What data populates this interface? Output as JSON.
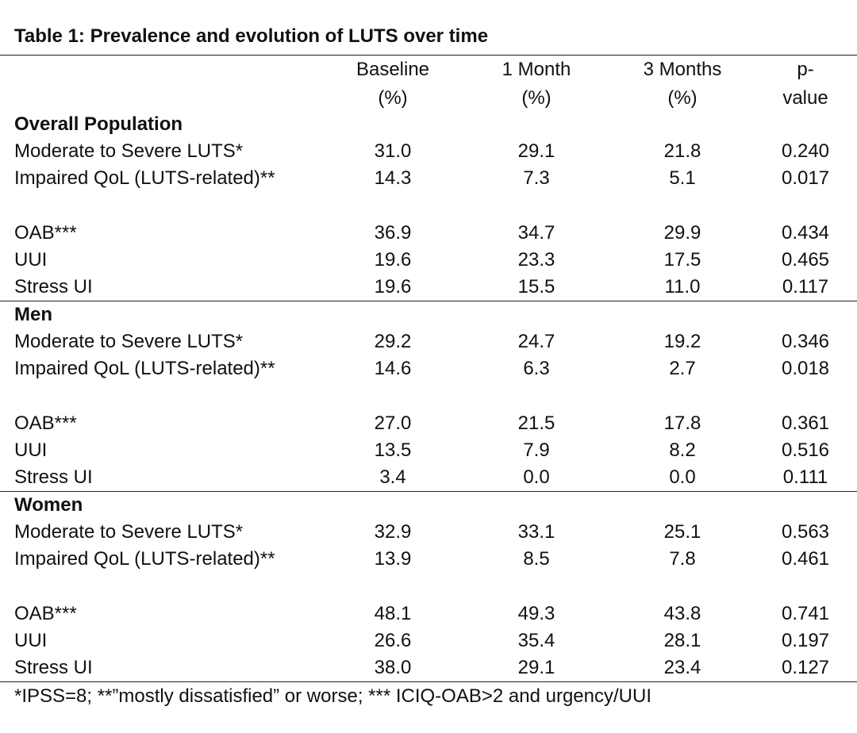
{
  "title": "Table 1: Prevalence and evolution of LUTS over time",
  "columns": [
    {
      "line1": "Baseline",
      "line2": "(%)"
    },
    {
      "line1": "1 Month",
      "line2": "(%)"
    },
    {
      "line1": "3 Months",
      "line2": "(%)"
    },
    {
      "line1": "p-",
      "line2": "value"
    }
  ],
  "sections": [
    {
      "name": "Overall Population",
      "rows": [
        {
          "label": "Moderate to Severe LUTS*",
          "values": [
            "31.0",
            "29.1",
            "21.8",
            "0.240"
          ]
        },
        {
          "label": "Impaired QoL (LUTS-related)**",
          "values": [
            "14.3",
            "7.3",
            "5.1",
            "0.017"
          ]
        },
        {
          "label": "OAB***",
          "values": [
            "36.9",
            "34.7",
            "29.9",
            "0.434"
          ]
        },
        {
          "label": "UUI",
          "values": [
            "19.6",
            "23.3",
            "17.5",
            "0.465"
          ]
        },
        {
          "label": "Stress UI",
          "values": [
            "19.6",
            "15.5",
            "11.0",
            "0.117"
          ]
        }
      ]
    },
    {
      "name": "Men",
      "rows": [
        {
          "label": "Moderate to Severe LUTS*",
          "values": [
            "29.2",
            "24.7",
            "19.2",
            "0.346"
          ]
        },
        {
          "label": "Impaired QoL (LUTS-related)**",
          "values": [
            "14.6",
            "6.3",
            "2.7",
            "0.018"
          ]
        },
        {
          "label": "OAB***",
          "values": [
            "27.0",
            "21.5",
            "17.8",
            "0.361"
          ]
        },
        {
          "label": "UUI",
          "values": [
            "13.5",
            "7.9",
            "8.2",
            "0.516"
          ]
        },
        {
          "label": "Stress UI",
          "values": [
            "3.4",
            "0.0",
            "0.0",
            "0.111"
          ]
        }
      ]
    },
    {
      "name": "Women",
      "rows": [
        {
          "label": "Moderate to Severe LUTS*",
          "values": [
            "32.9",
            "33.1",
            "25.1",
            "0.563"
          ]
        },
        {
          "label": "Impaired QoL (LUTS-related)**",
          "values": [
            "13.9",
            "8.5",
            "7.8",
            "0.461"
          ]
        },
        {
          "label": "OAB***",
          "values": [
            "48.1",
            "49.3",
            "43.8",
            "0.741"
          ]
        },
        {
          "label": "UUI",
          "values": [
            "26.6",
            "35.4",
            "28.1",
            "0.197"
          ]
        },
        {
          "label": "Stress UI",
          "values": [
            "38.0",
            "29.1",
            "23.4",
            "0.127"
          ]
        }
      ]
    }
  ],
  "footnote": "*IPSS=8; **”mostly dissatisfied” or worse; *** ICIQ-OAB>2 and urgency/UUI"
}
